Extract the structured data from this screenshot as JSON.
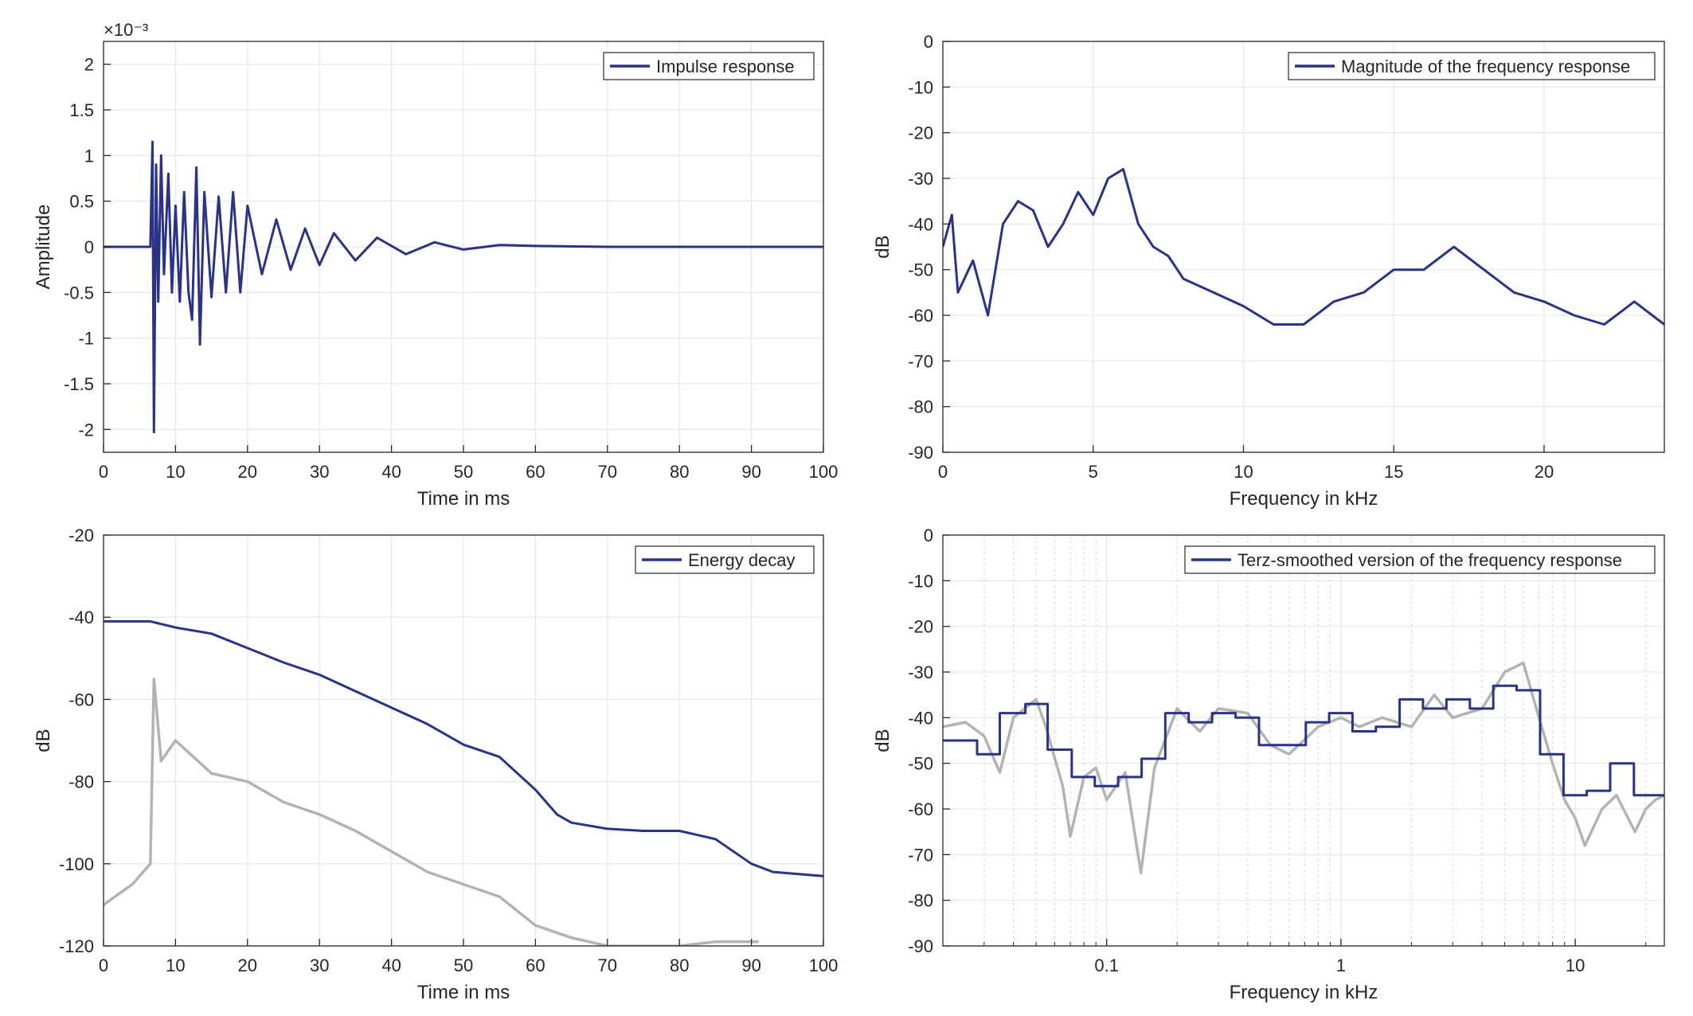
{
  "colors": {
    "primary": "#2b3386",
    "secondary": "#b3b3b3",
    "grid": "#e6e6e6",
    "axis": "#262626"
  },
  "chart_data": [
    {
      "type": "line",
      "xlabel": "Time in ms",
      "ylabel": "Amplitude",
      "y_multiplier": "×10⁻³",
      "xlim": [
        0,
        100
      ],
      "ylim": [
        -2.25,
        2.25
      ],
      "xticks": [
        "0",
        "10",
        "20",
        "30",
        "40",
        "50",
        "60",
        "70",
        "80",
        "90",
        "100"
      ],
      "yticks": [
        "-2",
        "-1.5",
        "-1",
        "-0.5",
        "0",
        "0.5",
        "1",
        "1.5",
        "2"
      ],
      "grid": true,
      "legend_position": "top-right",
      "series": [
        {
          "name": "Impulse response",
          "color": "#2b3386",
          "points": [
            [
              0,
              0
            ],
            [
              6.5,
              0
            ],
            [
              6.8,
              1.15
            ],
            [
              7.0,
              -2.03
            ],
            [
              7.3,
              0.9
            ],
            [
              7.6,
              -0.6
            ],
            [
              8,
              1.0
            ],
            [
              8.4,
              -0.3
            ],
            [
              9,
              0.8
            ],
            [
              9.5,
              -0.5
            ],
            [
              10,
              0.45
            ],
            [
              10.6,
              -0.6
            ],
            [
              11.2,
              0.6
            ],
            [
              11.8,
              -0.5
            ],
            [
              12.3,
              -0.8
            ],
            [
              12.9,
              0.87
            ],
            [
              13.4,
              -1.07
            ],
            [
              14,
              0.6
            ],
            [
              15,
              -0.55
            ],
            [
              16,
              0.55
            ],
            [
              17,
              -0.5
            ],
            [
              18,
              0.6
            ],
            [
              19,
              -0.5
            ],
            [
              20,
              0.45
            ],
            [
              22,
              -0.3
            ],
            [
              24,
              0.3
            ],
            [
              26,
              -0.25
            ],
            [
              28,
              0.2
            ],
            [
              30,
              -0.2
            ],
            [
              32,
              0.15
            ],
            [
              35,
              -0.15
            ],
            [
              38,
              0.1
            ],
            [
              42,
              -0.08
            ],
            [
              46,
              0.05
            ],
            [
              50,
              -0.03
            ],
            [
              55,
              0.02
            ],
            [
              60,
              0.01
            ],
            [
              70,
              0
            ],
            [
              100,
              0
            ]
          ]
        }
      ]
    },
    {
      "type": "line",
      "xlabel": "Frequency in kHz",
      "ylabel": "dB",
      "xlim": [
        0,
        24
      ],
      "ylim": [
        -90,
        0
      ],
      "xticks": [
        "0",
        "5",
        "10",
        "15",
        "20"
      ],
      "yticks": [
        "0",
        "-10",
        "-20",
        "-30",
        "-40",
        "-50",
        "-60",
        "-70",
        "-80",
        "-90"
      ],
      "grid": true,
      "legend_position": "top-right",
      "series": [
        {
          "name": "Magnitude of the frequency response",
          "color": "#2b3386",
          "points": [
            [
              0,
              -45
            ],
            [
              0.3,
              -38
            ],
            [
              0.5,
              -55
            ],
            [
              1,
              -48
            ],
            [
              1.5,
              -60
            ],
            [
              2,
              -40
            ],
            [
              2.5,
              -35
            ],
            [
              3,
              -37
            ],
            [
              3.5,
              -45
            ],
            [
              4,
              -40
            ],
            [
              4.5,
              -33
            ],
            [
              5,
              -38
            ],
            [
              5.5,
              -30
            ],
            [
              6,
              -28
            ],
            [
              6.5,
              -40
            ],
            [
              7,
              -45
            ],
            [
              7.5,
              -47
            ],
            [
              8,
              -52
            ],
            [
              9,
              -55
            ],
            [
              10,
              -58
            ],
            [
              11,
              -62
            ],
            [
              12,
              -62
            ],
            [
              13,
              -57
            ],
            [
              14,
              -55
            ],
            [
              15,
              -50
            ],
            [
              16,
              -50
            ],
            [
              17,
              -45
            ],
            [
              18,
              -50
            ],
            [
              19,
              -55
            ],
            [
              20,
              -57
            ],
            [
              21,
              -60
            ],
            [
              22,
              -62
            ],
            [
              23,
              -57
            ],
            [
              24,
              -62
            ]
          ]
        }
      ]
    },
    {
      "type": "line",
      "xlabel": "Time in ms",
      "ylabel": "dB",
      "xlim": [
        0,
        100
      ],
      "ylim": [
        -120,
        -20
      ],
      "xticks": [
        "0",
        "10",
        "20",
        "30",
        "40",
        "50",
        "60",
        "70",
        "80",
        "90",
        "100"
      ],
      "yticks": [
        "-20",
        "-40",
        "-60",
        "-80",
        "-100",
        "-120"
      ],
      "grid": true,
      "legend_position": "top-right",
      "series": [
        {
          "color": "#b3b3b3",
          "points": [
            [
              0,
              -110
            ],
            [
              4,
              -105
            ],
            [
              6.5,
              -100
            ],
            [
              7,
              -55
            ],
            [
              8,
              -75
            ],
            [
              10,
              -70
            ],
            [
              15,
              -78
            ],
            [
              20,
              -80
            ],
            [
              25,
              -85
            ],
            [
              30,
              -88
            ],
            [
              35,
              -92
            ],
            [
              40,
              -97
            ],
            [
              45,
              -102
            ],
            [
              50,
              -105
            ],
            [
              55,
              -108
            ],
            [
              60,
              -115
            ],
            [
              65,
              -118
            ],
            [
              70,
              -120
            ],
            [
              75,
              -120
            ],
            [
              80,
              -120
            ],
            [
              85,
              -119
            ],
            [
              91,
              -119
            ]
          ]
        },
        {
          "name": "Energy decay",
          "color": "#2b3386",
          "points": [
            [
              0,
              -41
            ],
            [
              6.5,
              -41
            ],
            [
              10,
              -42.5
            ],
            [
              15,
              -44
            ],
            [
              20,
              -47.5
            ],
            [
              25,
              -51
            ],
            [
              30,
              -54
            ],
            [
              35,
              -58
            ],
            [
              40,
              -62
            ],
            [
              45,
              -66
            ],
            [
              50,
              -71
            ],
            [
              55,
              -74
            ],
            [
              60,
              -82
            ],
            [
              63,
              -88
            ],
            [
              65,
              -90
            ],
            [
              70,
              -91.5
            ],
            [
              75,
              -92
            ],
            [
              80,
              -92
            ],
            [
              85,
              -94
            ],
            [
              90,
              -100
            ],
            [
              93,
              -102
            ],
            [
              100,
              -103
            ]
          ]
        }
      ]
    },
    {
      "type": "line",
      "xscale": "log",
      "xlabel": "Frequency in kHz",
      "ylabel": "dB",
      "xlim": [
        0.02,
        24
      ],
      "ylim": [
        -90,
        0
      ],
      "xticks": [
        "0.1",
        "1",
        "10"
      ],
      "yticks": [
        "0",
        "-10",
        "-20",
        "-30",
        "-40",
        "-50",
        "-60",
        "-70",
        "-80",
        "-90"
      ],
      "grid": true,
      "legend_position": "top-right",
      "series": [
        {
          "color": "#b3b3b3",
          "points": [
            [
              0.02,
              -42
            ],
            [
              0.025,
              -41
            ],
            [
              0.03,
              -44
            ],
            [
              0.035,
              -52
            ],
            [
              0.04,
              -40
            ],
            [
              0.05,
              -36
            ],
            [
              0.055,
              -42
            ],
            [
              0.065,
              -55
            ],
            [
              0.07,
              -66
            ],
            [
              0.08,
              -53
            ],
            [
              0.09,
              -51
            ],
            [
              0.1,
              -58
            ],
            [
              0.12,
              -52
            ],
            [
              0.14,
              -74
            ],
            [
              0.16,
              -51
            ],
            [
              0.2,
              -38
            ],
            [
              0.25,
              -43
            ],
            [
              0.3,
              -38
            ],
            [
              0.4,
              -39
            ],
            [
              0.5,
              -46
            ],
            [
              0.6,
              -48
            ],
            [
              0.8,
              -42
            ],
            [
              1,
              -40
            ],
            [
              1.2,
              -42
            ],
            [
              1.5,
              -40
            ],
            [
              2,
              -42
            ],
            [
              2.5,
              -35
            ],
            [
              3,
              -40
            ],
            [
              4,
              -38
            ],
            [
              5,
              -30
            ],
            [
              6,
              -28
            ],
            [
              7,
              -40
            ],
            [
              8,
              -50
            ],
            [
              9,
              -58
            ],
            [
              10,
              -62
            ],
            [
              11,
              -68
            ],
            [
              13,
              -60
            ],
            [
              15,
              -57
            ],
            [
              18,
              -65
            ],
            [
              20,
              -60
            ],
            [
              22,
              -58
            ],
            [
              24,
              -57
            ]
          ]
        },
        {
          "name": "Terz-smoothed version of the frequency response",
          "color": "#2b3386",
          "points": [
            [
              0.02,
              -45
            ],
            [
              0.028,
              -45
            ],
            [
              0.028,
              -48
            ],
            [
              0.035,
              -48
            ],
            [
              0.035,
              -39
            ],
            [
              0.045,
              -39
            ],
            [
              0.045,
              -37
            ],
            [
              0.056,
              -37
            ],
            [
              0.056,
              -47
            ],
            [
              0.071,
              -47
            ],
            [
              0.071,
              -53
            ],
            [
              0.089,
              -53
            ],
            [
              0.089,
              -55
            ],
            [
              0.112,
              -55
            ],
            [
              0.112,
              -53
            ],
            [
              0.141,
              -53
            ],
            [
              0.141,
              -49
            ],
            [
              0.178,
              -49
            ],
            [
              0.178,
              -39
            ],
            [
              0.224,
              -39
            ],
            [
              0.224,
              -41
            ],
            [
              0.282,
              -41
            ],
            [
              0.282,
              -39
            ],
            [
              0.355,
              -39
            ],
            [
              0.355,
              -40
            ],
            [
              0.447,
              -40
            ],
            [
              0.447,
              -46
            ],
            [
              0.562,
              -46
            ],
            [
              0.562,
              -46
            ],
            [
              0.708,
              -46
            ],
            [
              0.708,
              -41
            ],
            [
              0.891,
              -41
            ],
            [
              0.891,
              -39
            ],
            [
              1.12,
              -39
            ],
            [
              1.12,
              -43
            ],
            [
              1.41,
              -43
            ],
            [
              1.41,
              -42
            ],
            [
              1.78,
              -42
            ],
            [
              1.78,
              -36
            ],
            [
              2.24,
              -36
            ],
            [
              2.24,
              -38
            ],
            [
              2.82,
              -38
            ],
            [
              2.82,
              -36
            ],
            [
              3.55,
              -36
            ],
            [
              3.55,
              -38
            ],
            [
              4.47,
              -38
            ],
            [
              4.47,
              -33
            ],
            [
              5.62,
              -33
            ],
            [
              5.62,
              -34
            ],
            [
              7.08,
              -34
            ],
            [
              7.08,
              -48
            ],
            [
              8.91,
              -48
            ],
            [
              8.91,
              -57
            ],
            [
              11.2,
              -57
            ],
            [
              11.2,
              -56
            ],
            [
              14.1,
              -56
            ],
            [
              14.1,
              -50
            ],
            [
              17.8,
              -50
            ],
            [
              17.8,
              -57
            ],
            [
              24,
              -57
            ]
          ]
        }
      ]
    }
  ]
}
